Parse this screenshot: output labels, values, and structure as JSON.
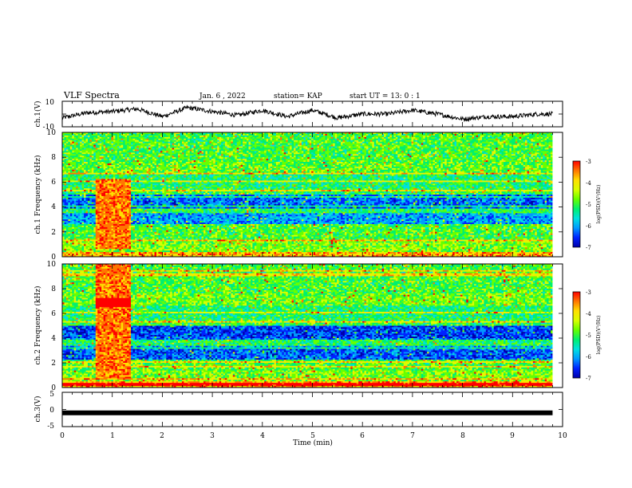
{
  "header": {
    "title": "VLF Spectra",
    "date": "Jan. 6 , 2022",
    "station": "station= KAP",
    "start": "start  UT =   13: 0  : 1"
  },
  "colors": {
    "colormap": [
      "#0000aa",
      "#0022ff",
      "#0099ff",
      "#00e0e0",
      "#00f070",
      "#66ff00",
      "#d8ff00",
      "#ffe000",
      "#ff7700",
      "#ff0000",
      "#ffffff"
    ],
    "trace": "#000000"
  },
  "chart_data": [
    {
      "type": "line",
      "ylabel": "ch.1(V)",
      "ylim": [
        -10,
        10
      ],
      "yticks": [
        "10",
        "-10"
      ],
      "xlim": [
        0,
        10
      ],
      "x": [
        0,
        0.5,
        1,
        1.5,
        2,
        2.5,
        3,
        3.5,
        4,
        4.5,
        5,
        5.5,
        6,
        6.5,
        7,
        7.5,
        8,
        8.5,
        9,
        9.5,
        9.8
      ],
      "values": [
        -3,
        1,
        2,
        4,
        -2,
        5,
        2,
        -1,
        3,
        -2,
        3,
        -3,
        0,
        0,
        3,
        0,
        -4,
        -2,
        -2,
        0,
        0
      ]
    },
    {
      "type": "heatmap",
      "ylabel": "ch.1 Frequency (kHz)",
      "ylim": [
        0,
        10
      ],
      "yticks": [
        "0",
        "2",
        "4",
        "6",
        "8",
        "10"
      ],
      "xlim": [
        0,
        10
      ],
      "colorbar": {
        "label": "log(PSD)(V²/Hz)",
        "range": [
          -7,
          -3
        ],
        "ticks": [
          "-3",
          "-4",
          "-5",
          "-6",
          "-7"
        ]
      }
    },
    {
      "type": "heatmap",
      "ylabel": "ch.2 Frequency (kHz)",
      "ylim": [
        0,
        10
      ],
      "yticks": [
        "0",
        "2",
        "4",
        "6",
        "8",
        "10"
      ],
      "xlim": [
        0,
        10
      ],
      "colorbar": {
        "label": "log(PSD)(V²/Hz)",
        "range": [
          -7,
          -3
        ],
        "ticks": [
          "-3",
          "-4",
          "-5",
          "-6",
          "-7"
        ]
      }
    },
    {
      "type": "line",
      "ylabel": "ch.3(V)",
      "ylim": [
        -5,
        5
      ],
      "yticks": [
        "5",
        "0",
        "-5"
      ],
      "xlim": [
        0,
        10
      ],
      "x": [
        0,
        9.8
      ],
      "values": [
        -1,
        -1
      ]
    }
  ],
  "xaxis": {
    "label": "Time  (min)",
    "ticks": [
      "0",
      "1",
      "2",
      "3",
      "4",
      "5",
      "6",
      "7",
      "8",
      "9",
      "10"
    ]
  }
}
